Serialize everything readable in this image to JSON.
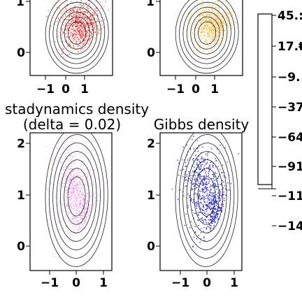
{
  "chart_data": [
    {
      "type": "scatter",
      "panel": "top-left",
      "title": "",
      "point_color": "#e8201a",
      "density_peaks": [
        [
          0.25,
          1.55
        ],
        [
          0.45,
          1.1
        ],
        [
          0.7,
          1.4
        ]
      ],
      "x_tick_labels": [
        "−1",
        "0",
        "1"
      ],
      "y_tick_labels": [
        "1",
        "0"
      ],
      "xlim": [
        -1.3,
        1.6
      ],
      "ylim": [
        -0.3,
        2.3
      ]
    },
    {
      "type": "scatter",
      "panel": "top-right",
      "title": "",
      "point_color": "#f5b22e",
      "density_peaks": [
        [
          0.3,
          1.5
        ],
        [
          0.55,
          1.15
        ],
        [
          0.8,
          1.4
        ]
      ],
      "x_tick_labels": [
        "−1",
        "0",
        "1"
      ],
      "y_tick_labels": [
        "1",
        "0"
      ],
      "xlim": [
        -1.3,
        1.6
      ],
      "ylim": [
        -0.3,
        2.3
      ]
    },
    {
      "type": "scatter",
      "panel": "bottom-left",
      "title": "stadynamics density\n(delta = 0.02)",
      "point_color": "#e25bd8",
      "density_peaks": [
        [
          0.2,
          1.3
        ],
        [
          0.6,
          0.75
        ]
      ],
      "x_tick_labels": [
        "−1",
        "0",
        "1"
      ],
      "y_tick_labels": [
        "2",
        "1",
        "0"
      ],
      "xlim": [
        -1.3,
        1.6
      ],
      "ylim": [
        -0.3,
        2.3
      ]
    },
    {
      "type": "scatter",
      "panel": "bottom-right",
      "title": "Gibbs density",
      "point_color": "#1717d6",
      "density_peaks": [
        [
          0.1,
          1.45
        ],
        [
          0.7,
          0.55
        ],
        [
          0.55,
          1.0
        ]
      ],
      "x_tick_labels": [
        "−1",
        "0",
        "1"
      ],
      "y_tick_labels": [
        "2",
        "1",
        "0"
      ],
      "xlim": [
        -1.3,
        1.6
      ],
      "ylim": [
        -0.3,
        2.3
      ]
    },
    {
      "type": "colorbar",
      "tick_labels": [
        "45.:",
        "17.ŧ",
        "−9.",
        "−37",
        "−64",
        "−91",
        "−11",
        "−14"
      ]
    }
  ],
  "titles": {
    "bottom_left_line1": "stadynamics density",
    "bottom_left_line2": "(delta = 0.02)",
    "bottom_right": "Gibbs density"
  },
  "partial_ticks": {
    "top_left_y": "1",
    "top_right_y": "1"
  }
}
